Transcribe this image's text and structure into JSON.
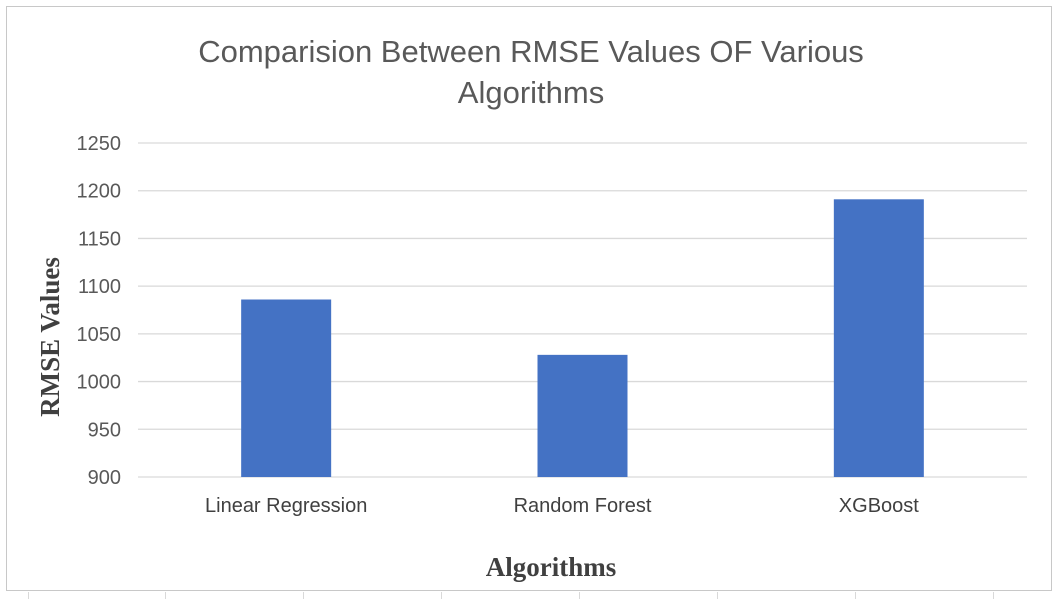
{
  "chart_data": {
    "type": "bar",
    "title_lines": [
      "Comparision Between RMSE Values OF Various",
      "Algorithms"
    ],
    "xlabel": "Algorithms",
    "ylabel": "RMSE Values",
    "categories": [
      "Linear Regression",
      "Random Forest",
      "XGBoost"
    ],
    "values": [
      1086,
      1028,
      1191
    ],
    "ylim": [
      900,
      1250
    ],
    "yticks": [
      900,
      950,
      1000,
      1050,
      1100,
      1150,
      1200,
      1250
    ],
    "grid": true,
    "legend": "none",
    "bar_color": "#4472C4",
    "gridline_color": "#D9D9D9"
  }
}
